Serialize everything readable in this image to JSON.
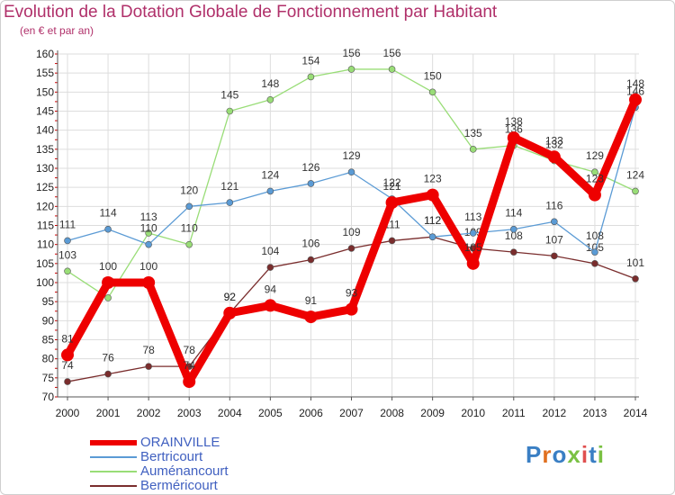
{
  "title": "Evolution de la Dotation Globale de Fonctionnement par Habitant",
  "subtitle": "(en € et par an)",
  "logo_text": "Proxiti",
  "colors": {
    "title": "#b0306a",
    "grid": "#dddddd",
    "axis_red": "#cc0000",
    "ORAINVILLE": "#ee0000",
    "Bertricourt": "#5b9bd5",
    "Aumenancourt": "#99dd77",
    "Bermericourt": "#7a2d2d"
  },
  "chart_data": {
    "type": "line",
    "title": "Evolution de la Dotation Globale de Fonctionnement par Habitant",
    "subtitle": "(en € et par an)",
    "x": [
      "2000",
      "2001",
      "2002",
      "2003",
      "2004",
      "2005",
      "2006",
      "2007",
      "2008",
      "2009",
      "2010",
      "2011",
      "2012",
      "2013",
      "2014"
    ],
    "ylim": [
      70,
      160
    ],
    "yticks": [
      70,
      75,
      80,
      85,
      90,
      95,
      100,
      105,
      110,
      115,
      120,
      125,
      130,
      135,
      140,
      145,
      150,
      155,
      160
    ],
    "grid": true,
    "legend_position": "bottom-left",
    "series": [
      {
        "name": "ORAINVILLE",
        "key": "ORAINVILLE",
        "values": [
          81,
          100,
          100,
          74,
          92,
          94,
          91,
          93,
          121,
          123,
          105,
          138,
          133,
          123,
          148
        ]
      },
      {
        "name": "Bertricourt",
        "key": "Bertricourt",
        "values": [
          111,
          114,
          110,
          120,
          121,
          124,
          126,
          129,
          122,
          112,
          113,
          114,
          116,
          108,
          146
        ]
      },
      {
        "name": "Auménancourt",
        "key": "Aumenancourt",
        "values": [
          103,
          96,
          113,
          110,
          145,
          148,
          154,
          156,
          156,
          150,
          135,
          136,
          132,
          129,
          124
        ]
      },
      {
        "name": "Berméricourt",
        "key": "Bermericourt",
        "values": [
          74,
          76,
          78,
          78,
          92,
          104,
          106,
          109,
          111,
          112,
          109,
          108,
          107,
          105,
          101
        ]
      }
    ]
  }
}
